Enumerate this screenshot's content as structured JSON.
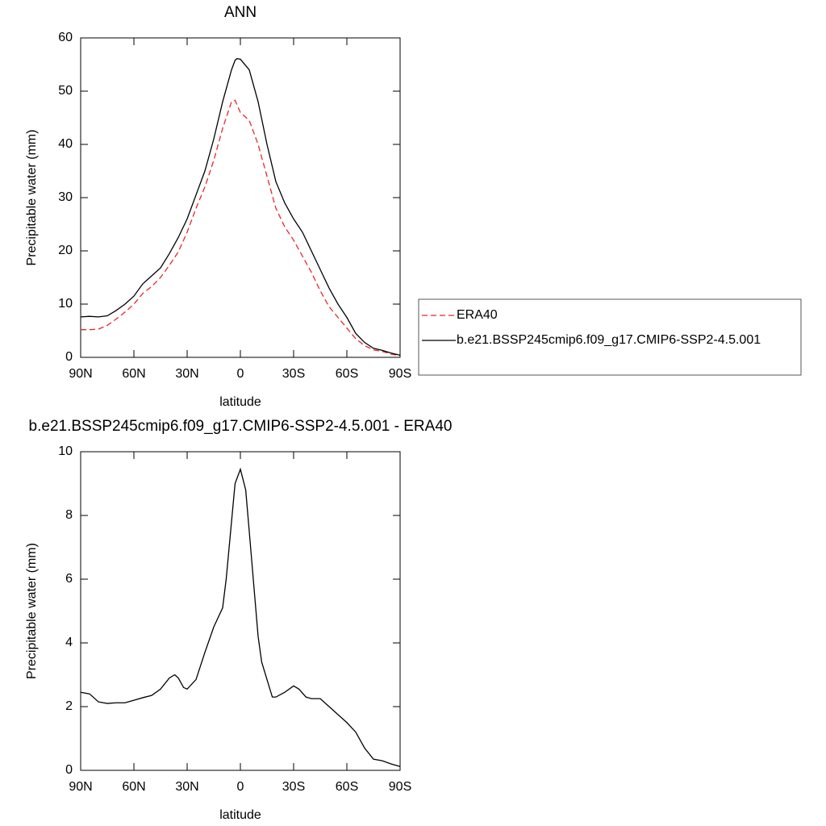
{
  "chart_data": [
    {
      "type": "line",
      "title": "ANN",
      "xlabel": "latitude",
      "ylabel": "Precipitable water (mm)",
      "x": [
        90,
        85,
        80,
        75,
        70,
        65,
        60,
        55,
        50,
        45,
        40,
        35,
        30,
        25,
        20,
        15,
        10,
        5,
        3,
        2,
        0,
        -5,
        -10,
        -15,
        -20,
        -25,
        -30,
        -35,
        -40,
        -45,
        -50,
        -55,
        -60,
        -65,
        -70,
        -75,
        -80,
        -85,
        -90
      ],
      "series": [
        {
          "name": "ERA40",
          "color": "#e8262b",
          "dash": true,
          "values": [
            5.2,
            5.2,
            5.3,
            6,
            7.2,
            8.5,
            10,
            12,
            13.3,
            15,
            17.3,
            19.8,
            23.5,
            28,
            32,
            37,
            43,
            48,
            48.3,
            47.5,
            46,
            44.5,
            40,
            34,
            28,
            24.5,
            22,
            19,
            16,
            12.5,
            9.5,
            7.5,
            5.5,
            3.5,
            2.2,
            1.4,
            1.1,
            0.6,
            0.3
          ]
        },
        {
          "name": "b.e21.BSSP245cmip6.f09_g17.CMIP6-SSP2-4.5.001",
          "color": "#000000",
          "dash": false,
          "values": [
            7.6,
            7.7,
            7.6,
            7.8,
            8.8,
            10,
            11.5,
            13.8,
            15.3,
            16.8,
            19.5,
            22.5,
            26,
            30.5,
            35,
            41,
            48,
            54,
            55.8,
            56.1,
            56,
            54,
            48,
            40,
            33,
            29,
            26,
            23.5,
            20,
            16.5,
            13,
            10,
            7.5,
            4.5,
            2.8,
            1.7,
            1.3,
            0.8,
            0.4
          ]
        }
      ],
      "xlim": [
        90,
        -90
      ],
      "xticks": [
        {
          "value": 90,
          "label": "90N"
        },
        {
          "value": 60,
          "label": "60N"
        },
        {
          "value": 30,
          "label": "30N"
        },
        0,
        {
          "value": -30,
          "label": "30S"
        },
        {
          "value": -60,
          "label": "60S"
        },
        {
          "value": -90,
          "label": "90S"
        }
      ],
      "ylim": [
        0,
        60
      ],
      "yticks": [
        0,
        10,
        20,
        30,
        40,
        50,
        60
      ],
      "legend": "right"
    },
    {
      "type": "line",
      "title": "b.e21.BSSP245cmip6.f09_g17.CMIP6-SSP2-4.5.001 - ERA40",
      "xlabel": "latitude",
      "ylabel": "Precipitable water (mm)",
      "x": [
        90,
        85,
        80,
        75,
        70,
        65,
        60,
        55,
        50,
        45,
        40,
        37,
        35,
        32,
        30,
        25,
        20,
        15,
        10,
        8,
        5,
        3,
        0,
        -3,
        -5,
        -10,
        -12,
        -18,
        -20,
        -25,
        -30,
        -33,
        -37,
        -40,
        -45,
        -50,
        -55,
        -60,
        -65,
        -70,
        -75,
        -80,
        -85,
        -90
      ],
      "series": [
        {
          "color": "#000000",
          "dash": false,
          "values": [
            2.45,
            2.4,
            2.15,
            2.1,
            2.12,
            2.12,
            2.2,
            2.28,
            2.35,
            2.55,
            2.9,
            3.0,
            2.9,
            2.6,
            2.55,
            2.85,
            3.7,
            4.5,
            5.1,
            6,
            7.8,
            9,
            9.45,
            8.8,
            7.5,
            4.2,
            3.4,
            2.3,
            2.3,
            2.45,
            2.65,
            2.55,
            2.3,
            2.25,
            2.25,
            2.0,
            1.75,
            1.5,
            1.2,
            0.7,
            0.35,
            0.3,
            0.2,
            0.12
          ]
        }
      ],
      "xlim": [
        90,
        -90
      ],
      "xticks": [
        {
          "value": 90,
          "label": "90N"
        },
        {
          "value": 60,
          "label": "60N"
        },
        {
          "value": 30,
          "label": "30N"
        },
        0,
        {
          "value": -30,
          "label": "30S"
        },
        {
          "value": -60,
          "label": "60S"
        },
        {
          "value": -90,
          "label": "90S"
        }
      ],
      "ylim": [
        0,
        10
      ],
      "yticks": [
        0,
        2,
        4,
        6,
        8,
        10
      ]
    }
  ]
}
